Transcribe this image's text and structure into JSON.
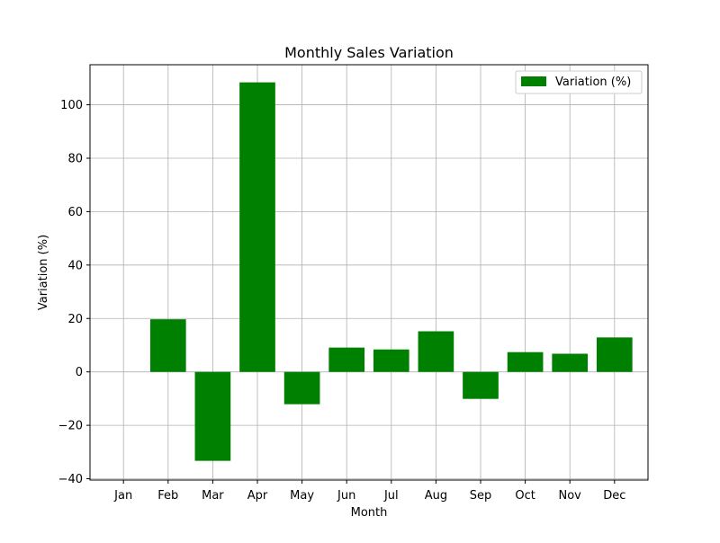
{
  "chart_data": {
    "type": "bar",
    "title": "Monthly Sales Variation",
    "xlabel": "Month",
    "ylabel": "Variation (%)",
    "categories": [
      "Jan",
      "Feb",
      "Mar",
      "Apr",
      "May",
      "Jun",
      "Jul",
      "Aug",
      "Sep",
      "Oct",
      "Nov",
      "Dec"
    ],
    "series": [
      {
        "name": "Variation (%)",
        "color": "#008000",
        "values": [
          0,
          19.7,
          -33.3,
          108.4,
          -12.1,
          9.1,
          8.4,
          15.2,
          -10.1,
          7.4,
          6.8,
          12.9
        ]
      }
    ],
    "ylim": [
      -40.5,
      115
    ],
    "yticks": [
      -40,
      -20,
      0,
      20,
      40,
      60,
      80,
      100
    ],
    "ytick_labels": [
      "−40",
      "−20",
      "0",
      "20",
      "40",
      "60",
      "80",
      "100"
    ],
    "grid": true,
    "legend_position": "top-right"
  }
}
